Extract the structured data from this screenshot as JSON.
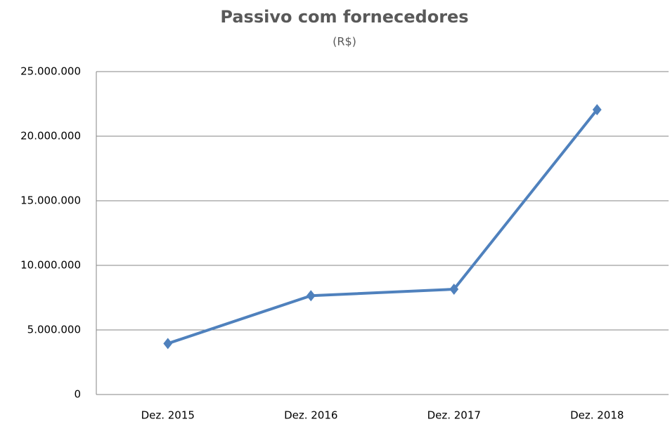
{
  "chart_data": {
    "type": "line",
    "title": "Passivo com fornecedores",
    "subtitle": "(R$)",
    "categories": [
      "Dez. 2015",
      "Dez. 2016",
      "Dez. 2017",
      "Dez. 2018"
    ],
    "series": [
      {
        "name": "Passivo com fornecedores",
        "color": "#4f81bd",
        "values": [
          3950000,
          7650000,
          8150000,
          22050000
        ]
      }
    ],
    "ylim": [
      0,
      25000000
    ],
    "yticks": [
      0,
      {
        "value": 5000000,
        "label": "5.000.000"
      },
      {
        "value": 10000000,
        "label": "10.000.000"
      },
      {
        "value": 15000000,
        "label": "15.000.000"
      },
      {
        "value": 20000000,
        "label": "20.000.000"
      },
      {
        "value": 25000000,
        "label": "25.000.000"
      }
    ],
    "grid": true,
    "legend": false
  }
}
